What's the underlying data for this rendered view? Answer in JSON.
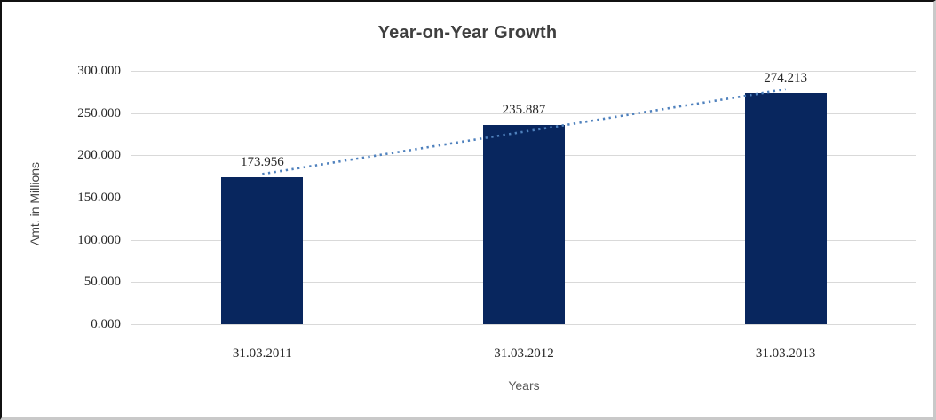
{
  "chart_data": {
    "type": "bar",
    "title": "Year-on-Year Growth",
    "xlabel": "Years",
    "ylabel": "Amt. in Millions",
    "categories": [
      "31.03.2011",
      "31.03.2012",
      "31.03.2013"
    ],
    "values": [
      173.956,
      235.887,
      274.213
    ],
    "value_labels": [
      "173.956",
      "235.887",
      "274.213"
    ],
    "ylim": [
      0,
      300
    ],
    "yticks": [
      0,
      50,
      100,
      150,
      200,
      250,
      300
    ],
    "ytick_labels": [
      "0.000",
      "50.000",
      "100.000",
      "150.000",
      "200.000",
      "250.000",
      "300.000"
    ],
    "grid": true,
    "legend_position": "none",
    "bar_color": "#08265e",
    "gridline_color": "#d9d9d9",
    "trendline": {
      "type": "linear",
      "style": "dotted",
      "color": "#4f81bd"
    }
  }
}
